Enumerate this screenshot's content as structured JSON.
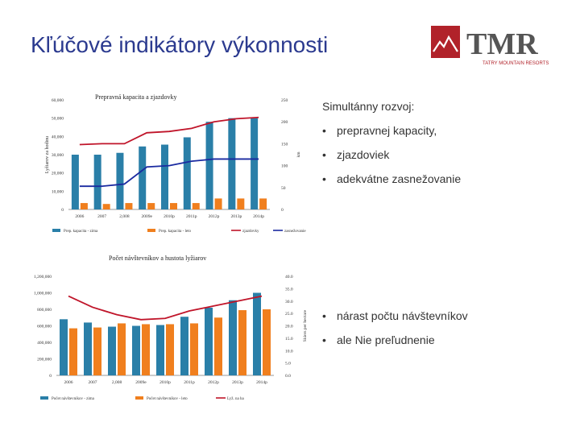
{
  "slide": {
    "title": "Kľúčové indikátory výkonnosti",
    "logo_text": "TMR",
    "logo_subtext": "TATRY MOUNTAIN RESORTS",
    "brand_color": "#b1222a"
  },
  "bullets_top": {
    "header": "Simultánny rozvoj:",
    "items": [
      "prepravnej kapacity,",
      "zjazdoviek",
      "adekvátne zasnežovanie"
    ]
  },
  "bullets_bottom": {
    "items": [
      "nárast počtu návštevníkov",
      "ale Nie preľudnenie"
    ]
  },
  "chart_data": [
    {
      "type": "bar",
      "title": "Prepravná kapacita a zjazdovky",
      "ylabel": "Lyžiarov za hodinu",
      "y2label": "km",
      "ylim": [
        0,
        60000
      ],
      "y2lim": [
        0,
        250
      ],
      "yticks": [
        "0",
        "10,000",
        "20,000",
        "30,000",
        "40,000",
        "50,000",
        "60,000"
      ],
      "y2ticks": [
        "0",
        "50",
        "100",
        "150",
        "200",
        "250"
      ],
      "categories": [
        "2006",
        "2007",
        "2,008",
        "2009e",
        "2010p",
        "2011p",
        "2012p",
        "2013p",
        "2014p"
      ],
      "series": [
        {
          "name": "Prep. kapacita - zima",
          "kind": "bar",
          "color": "#2a7fa8",
          "values": [
            30000,
            30000,
            31000,
            34500,
            35500,
            39500,
            48000,
            50000,
            50000
          ]
        },
        {
          "name": "Prep. kapacita - leto",
          "kind": "bar",
          "color": "#f07f1e",
          "values": [
            3500,
            3000,
            3500,
            3500,
            3500,
            3500,
            6000,
            6000,
            6000
          ]
        },
        {
          "name": "zjazdovky",
          "kind": "line",
          "axis": "right",
          "color": "#c0152a",
          "values": [
            148,
            150,
            150,
            175,
            178,
            185,
            200,
            207,
            210
          ]
        },
        {
          "name": "zasnežovanie",
          "kind": "line",
          "axis": "right",
          "color": "#1a2aa0",
          "values": [
            53,
            53,
            58,
            97,
            100,
            110,
            115,
            115,
            115
          ]
        }
      ]
    },
    {
      "type": "bar",
      "title": "Počet návštevníkov a hustota lyžiarov",
      "ylabel": "",
      "y2label": "Skiers per hectare",
      "ylim": [
        0,
        1200000
      ],
      "y2lim": [
        0,
        40
      ],
      "yticks": [
        "0",
        "200,000",
        "400,000",
        "600,000",
        "800,000",
        "1,000,000",
        "1,200,000"
      ],
      "y2ticks": [
        "0.0",
        "5.0",
        "10.0",
        "15.0",
        "20.0",
        "25.0",
        "30.0",
        "35.0",
        "40.0"
      ],
      "categories": [
        "2006",
        "2007",
        "2,008",
        "2009e",
        "2010p",
        "2011p",
        "2012p",
        "2013p",
        "2014p"
      ],
      "series": [
        {
          "name": "Počet návštevníkov - zima",
          "kind": "bar",
          "color": "#2a7fa8",
          "values": [
            680000,
            640000,
            590000,
            600000,
            610000,
            710000,
            820000,
            910000,
            1000000
          ]
        },
        {
          "name": "Počet návštevníkov - leto",
          "kind": "bar",
          "color": "#f07f1e",
          "values": [
            570000,
            580000,
            630000,
            620000,
            620000,
            630000,
            700000,
            790000,
            800000
          ]
        },
        {
          "name": "Lyž. na ha",
          "kind": "line",
          "axis": "right",
          "color": "#c0152a",
          "values": [
            32,
            27.5,
            24.5,
            22.5,
            23,
            26,
            28,
            30,
            32
          ]
        }
      ]
    }
  ]
}
